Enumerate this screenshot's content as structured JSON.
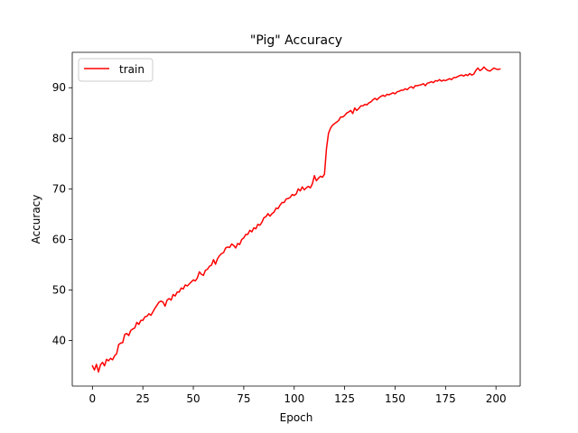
{
  "chart_data": {
    "type": "line",
    "title": "\"Pig\" Accuracy",
    "xlabel": "Epoch",
    "ylabel": "Accuracy",
    "xlim": [
      -10,
      212
    ],
    "ylim": [
      31,
      97
    ],
    "xticks": [
      0,
      25,
      50,
      75,
      100,
      125,
      150,
      175,
      200
    ],
    "yticks": [
      40,
      50,
      60,
      70,
      80,
      90
    ],
    "grid": false,
    "legend_position": "top-left",
    "series": [
      {
        "name": "train",
        "color": "#ff0000",
        "x": [
          0,
          1,
          2,
          3,
          4,
          5,
          6,
          7,
          8,
          9,
          10,
          11,
          12,
          13,
          14,
          15,
          16,
          17,
          18,
          19,
          20,
          21,
          22,
          23,
          24,
          25,
          26,
          27,
          28,
          29,
          30,
          31,
          32,
          33,
          34,
          35,
          36,
          37,
          38,
          39,
          40,
          41,
          42,
          43,
          44,
          45,
          46,
          47,
          48,
          49,
          50,
          51,
          52,
          53,
          54,
          55,
          56,
          57,
          58,
          59,
          60,
          61,
          62,
          63,
          64,
          65,
          66,
          67,
          68,
          69,
          70,
          71,
          72,
          73,
          74,
          75,
          76,
          77,
          78,
          79,
          80,
          81,
          82,
          83,
          84,
          85,
          86,
          87,
          88,
          89,
          90,
          91,
          92,
          93,
          94,
          95,
          96,
          97,
          98,
          99,
          100,
          101,
          102,
          103,
          104,
          105,
          106,
          107,
          108,
          109,
          110,
          111,
          112,
          113,
          114,
          115,
          116,
          117,
          118,
          119,
          120,
          121,
          122,
          123,
          124,
          125,
          126,
          127,
          128,
          129,
          130,
          131,
          132,
          133,
          134,
          135,
          136,
          137,
          138,
          139,
          140,
          141,
          142,
          143,
          144,
          145,
          146,
          147,
          148,
          149,
          150,
          151,
          152,
          153,
          154,
          155,
          156,
          157,
          158,
          159,
          160,
          161,
          162,
          163,
          164,
          165,
          166,
          167,
          168,
          169,
          170,
          171,
          172,
          173,
          174,
          175,
          176,
          177,
          178,
          179,
          180,
          181,
          182,
          183,
          184,
          185,
          186,
          187,
          188,
          189,
          190,
          191,
          192,
          193,
          194,
          195,
          196,
          197,
          198,
          199,
          200,
          201,
          202
        ],
        "y": [
          35.0,
          34.2,
          35.3,
          33.8,
          35.2,
          35.7,
          35.0,
          36.3,
          36.0,
          36.5,
          36.2,
          37.0,
          37.4,
          39.2,
          39.5,
          39.6,
          41.2,
          41.4,
          41.0,
          42.0,
          42.3,
          42.5,
          43.6,
          43.2,
          44.0,
          44.0,
          44.7,
          44.8,
          45.3,
          45.0,
          45.7,
          46.4,
          47.0,
          47.6,
          47.8,
          47.6,
          46.8,
          48.0,
          48.3,
          48.0,
          49.1,
          48.8,
          49.6,
          49.6,
          50.4,
          50.2,
          51.0,
          50.8,
          51.2,
          51.6,
          52.0,
          51.8,
          52.4,
          53.6,
          53.1,
          52.9,
          53.9,
          54.1,
          54.7,
          54.9,
          56.0,
          55.1,
          56.2,
          56.8,
          57.2,
          57.4,
          58.3,
          58.5,
          58.4,
          59.1,
          58.8,
          58.3,
          59.2,
          59.0,
          60.0,
          60.3,
          61.0,
          61.0,
          61.8,
          61.5,
          62.3,
          62.1,
          63.0,
          62.8,
          63.4,
          64.3,
          64.5,
          65.1,
          64.6,
          65.1,
          65.4,
          66.2,
          66.1,
          66.8,
          67.3,
          67.3,
          68.0,
          68.1,
          68.3,
          68.9,
          68.7,
          69.0,
          70.0,
          69.6,
          70.4,
          69.8,
          70.2,
          70.5,
          70.2,
          71.0,
          72.6,
          71.6,
          72.1,
          72.5,
          72.3,
          72.9,
          78.0,
          81.0,
          82.0,
          82.6,
          82.9,
          83.2,
          83.5,
          84.2,
          84.2,
          84.5,
          85.0,
          85.2,
          85.5,
          84.9,
          86.0,
          85.5,
          85.9,
          86.4,
          86.4,
          86.7,
          86.6,
          87.0,
          87.2,
          87.6,
          87.9,
          87.6,
          88.0,
          88.3,
          88.5,
          88.3,
          88.7,
          88.6,
          88.8,
          89.0,
          88.8,
          89.2,
          89.3,
          89.5,
          89.5,
          89.8,
          89.6,
          90.0,
          90.2,
          89.9,
          90.4,
          90.4,
          90.5,
          90.6,
          90.8,
          90.4,
          90.9,
          91.0,
          91.2,
          91.0,
          91.4,
          91.3,
          91.6,
          91.3,
          91.5,
          91.4,
          91.6,
          91.8,
          91.6,
          92.0,
          92.0,
          92.2,
          92.4,
          92.5,
          92.3,
          92.6,
          92.4,
          92.8,
          92.5,
          92.7,
          93.4,
          93.9,
          93.4,
          93.6,
          94.1,
          93.7,
          93.4,
          93.3,
          93.6,
          93.9,
          93.7,
          93.6,
          93.7
        ]
      }
    ]
  }
}
